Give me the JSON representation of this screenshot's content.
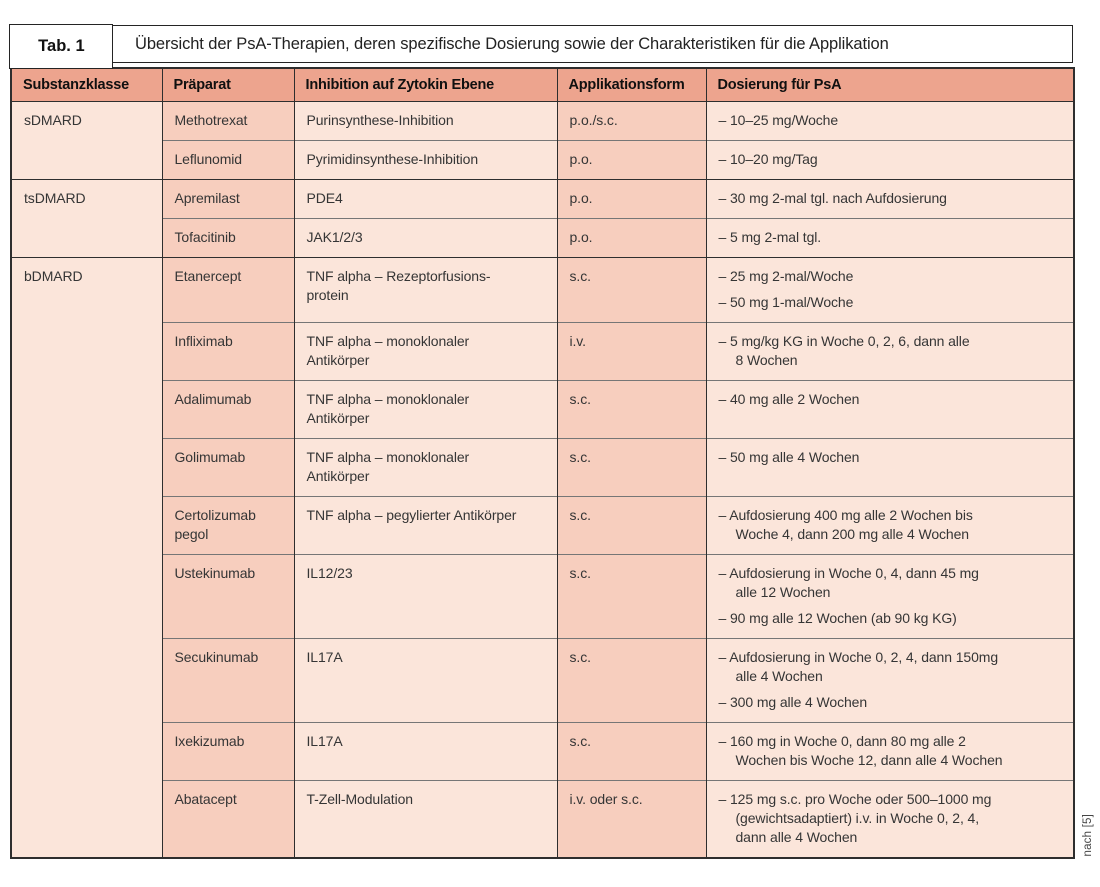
{
  "colors": {
    "header_bg": "#eda48e",
    "accent_bg": "#f7cebe",
    "light_bg": "#fbe5da",
    "border_dark": "#2e2e2e",
    "border_gray": "#767676"
  },
  "table": {
    "label": "Tab. 1",
    "title": "Übersicht der PsA-Therapien, deren spezifische Dosierung sowie der Charakteristiken für die Applikation",
    "columns": [
      "Substanzklasse",
      "Präparat",
      "Inhibition auf Zytokin Ebene",
      "Applikationsform",
      "Dosierung für PsA"
    ],
    "source_note": "nach [5]",
    "groups": [
      {
        "name": "sDMARD",
        "rows": [
          {
            "praeparat": "Methotrexat",
            "inhibition": [
              "Purinsynthese-Inhibition"
            ],
            "applikationsform": "p.o./s.c.",
            "dosierung": [
              [
                "– 10–25 mg/Woche"
              ]
            ]
          },
          {
            "praeparat": "Leflunomid",
            "inhibition": [
              "Pyrimidinsynthese-Inhibition"
            ],
            "applikationsform": "p.o.",
            "dosierung": [
              [
                "– 10–20 mg/Tag"
              ]
            ]
          }
        ]
      },
      {
        "name": "tsDMARD",
        "rows": [
          {
            "praeparat": "Apremilast",
            "inhibition": [
              "PDE4"
            ],
            "applikationsform": "p.o.",
            "dosierung": [
              [
                "– 30 mg 2-mal tgl. nach Aufdosierung"
              ]
            ]
          },
          {
            "praeparat": "Tofacitinib",
            "inhibition": [
              "JAK1/2/3"
            ],
            "applikationsform": "p.o.",
            "dosierung": [
              [
                "– 5 mg 2-mal tgl."
              ]
            ]
          }
        ]
      },
      {
        "name": "bDMARD",
        "rows": [
          {
            "praeparat": "Etanercept",
            "inhibition": [
              "TNF alpha – Rezeptorfusions-",
              "protein"
            ],
            "applikationsform": "s.c.",
            "dosierung": [
              [
                "– 25 mg 2-mal/Woche"
              ],
              [
                "– 50 mg 1-mal/Woche"
              ]
            ]
          },
          {
            "praeparat": "Infliximab",
            "inhibition": [
              "TNF alpha – monoklonaler",
              "Antikörper"
            ],
            "applikationsform": "i.v.",
            "dosierung": [
              [
                "– 5 mg/kg KG in Woche 0, 2, 6, dann alle",
                "8 Wochen"
              ]
            ]
          },
          {
            "praeparat": "Adalimumab",
            "inhibition": [
              "TNF alpha – monoklonaler",
              "Antikörper"
            ],
            "applikationsform": "s.c.",
            "dosierung": [
              [
                "– 40 mg alle 2 Wochen"
              ]
            ]
          },
          {
            "praeparat": "Golimumab",
            "inhibition": [
              "TNF alpha – monoklonaler",
              "Antikörper"
            ],
            "applikationsform": "s.c.",
            "dosierung": [
              [
                "– 50 mg alle 4 Wochen"
              ]
            ]
          },
          {
            "praeparat": "Certolizumab pegol",
            "inhibition": [
              "TNF alpha – pegylierter Antikörper"
            ],
            "applikationsform": "s.c.",
            "dosierung": [
              [
                "– Aufdosierung 400 mg alle 2 Wochen bis",
                "Woche 4, dann 200 mg alle 4 Wochen"
              ]
            ]
          },
          {
            "praeparat": "Ustekinumab",
            "inhibition": [
              "IL12/23"
            ],
            "applikationsform": "s.c.",
            "dosierung": [
              [
                "– Aufdosierung in Woche 0, 4, dann 45 mg",
                "alle 12 Wochen"
              ],
              [
                "– 90 mg alle 12 Wochen (ab 90 kg KG)"
              ]
            ]
          },
          {
            "praeparat": "Secukinumab",
            "inhibition": [
              "IL17A"
            ],
            "applikationsform": "s.c.",
            "dosierung": [
              [
                "– Aufdosierung in Woche 0, 2, 4, dann 150mg",
                "alle 4 Wochen"
              ],
              [
                "– 300 mg alle 4 Wochen"
              ]
            ]
          },
          {
            "praeparat": "Ixekizumab",
            "inhibition": [
              "IL17A"
            ],
            "applikationsform": "s.c.",
            "dosierung": [
              [
                "– 160 mg in Woche 0, dann 80 mg alle 2",
                "Wochen bis Woche 12, dann alle 4 Wochen"
              ]
            ]
          },
          {
            "praeparat": "Abatacept",
            "inhibition": [
              "T-Zell-Modulation"
            ],
            "applikationsform": "i.v. oder s.c.",
            "dosierung": [
              [
                "– 125 mg s.c. pro Woche oder 500–1000 mg",
                "(gewichtsadaptiert) i.v. in Woche 0, 2, 4,",
                "dann alle 4 Wochen"
              ]
            ]
          }
        ]
      }
    ]
  }
}
